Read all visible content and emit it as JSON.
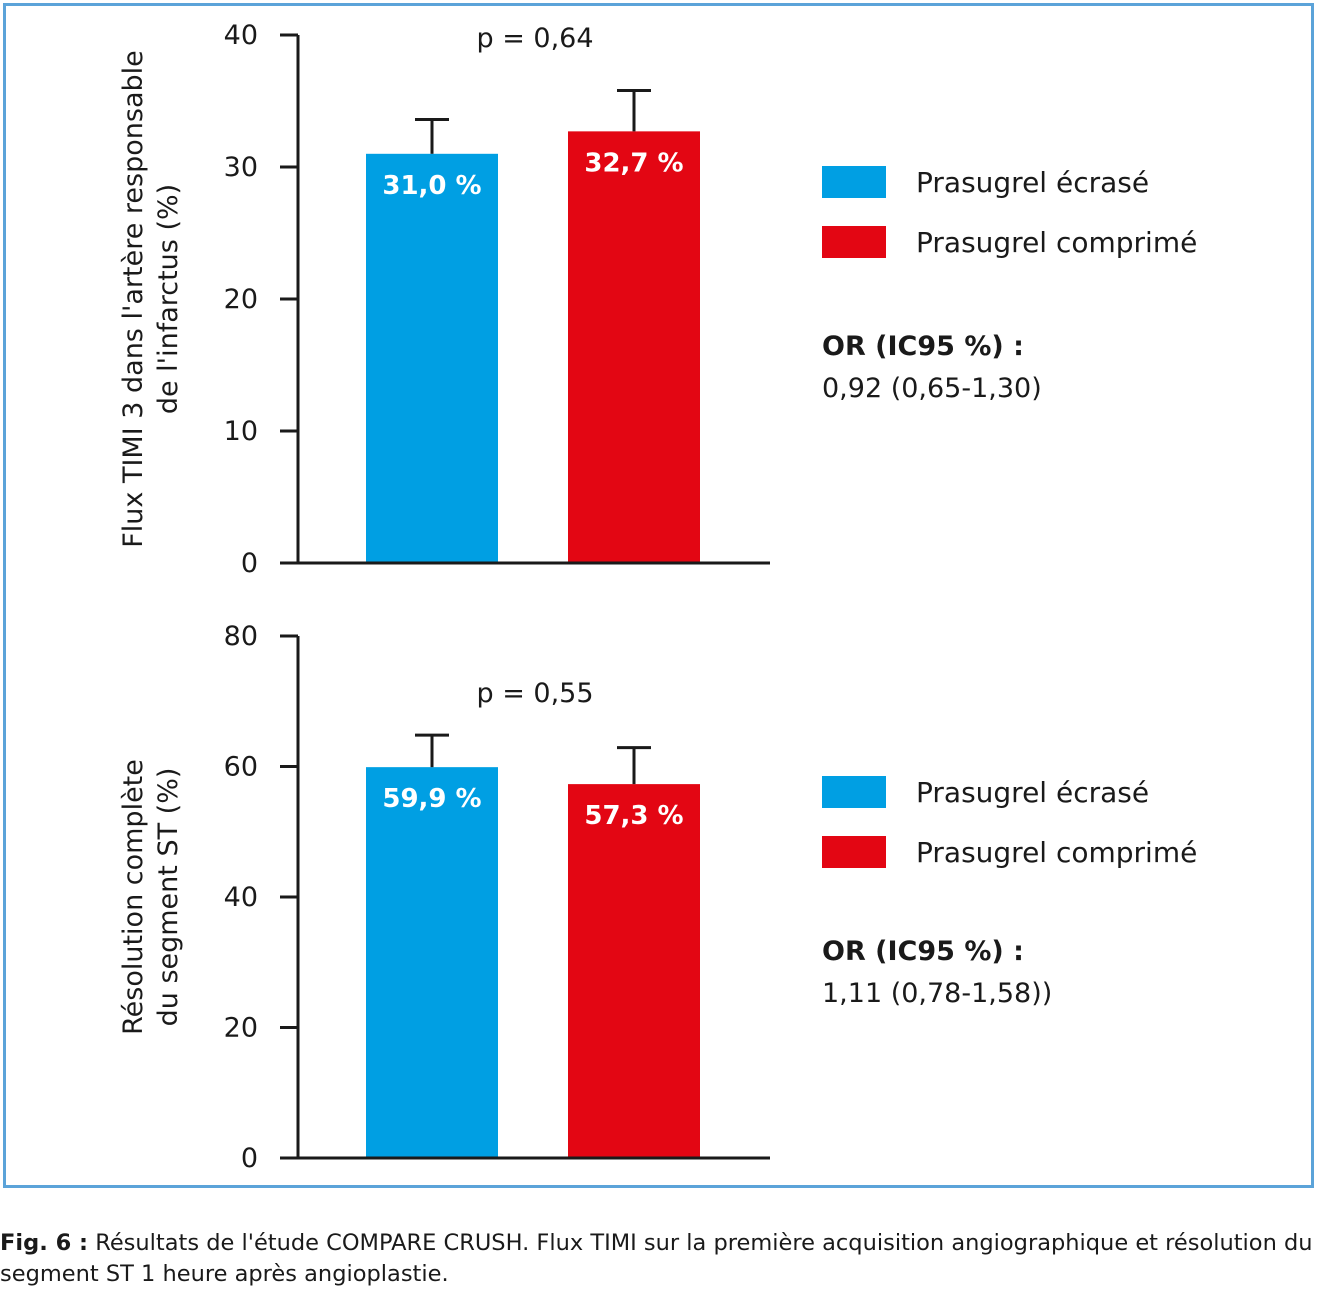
{
  "chart_data": [
    {
      "type": "bar",
      "ylabel": [
        "Flux TIMI 3 dans l'artère responsable",
        "de l'infarctus (%)"
      ],
      "ylim": [
        0,
        40
      ],
      "yticks": [
        "0",
        "10",
        "20",
        "30",
        "40"
      ],
      "categories": [
        "Prasugrel écrasé",
        "Prasugrel comprimé"
      ],
      "values": [
        31.0,
        32.7
      ],
      "error_upper": [
        33.6,
        35.8
      ],
      "value_labels": [
        "31,0 %",
        "32,7 %"
      ],
      "colors": [
        "#009fe3",
        "#e30613"
      ],
      "annotation": "p = 0,64",
      "legend": [
        "Prasugrel écrasé",
        "Prasugrel comprimé"
      ],
      "or_title": "OR (IC95 %) :",
      "or_value": "0,92 (0,65-1,30)"
    },
    {
      "type": "bar",
      "ylabel": [
        "Résolution complète",
        "du segment ST (%)"
      ],
      "ylim": [
        0,
        80
      ],
      "yticks": [
        "0",
        "20",
        "40",
        "60",
        "80"
      ],
      "categories": [
        "Prasugrel écrasé",
        "Prasugrel comprimé"
      ],
      "values": [
        59.9,
        57.3
      ],
      "error_upper": [
        64.8,
        62.9
      ],
      "value_labels": [
        "59,9 %",
        "57,3 %"
      ],
      "colors": [
        "#009fe3",
        "#e30613"
      ],
      "annotation": "p = 0,55",
      "legend": [
        "Prasugrel écrasé",
        "Prasugrel comprimé"
      ],
      "or_title": "OR (IC95 %) :",
      "or_value": "1,11 (0,78-1,58))"
    }
  ],
  "caption": {
    "label": "Fig. 6 :",
    "text": "Résultats de l'étude COMPARE CRUSH. Flux TIMI sur la première acquisition angiographique et résolution du segment ST 1 heure après angioplastie."
  }
}
